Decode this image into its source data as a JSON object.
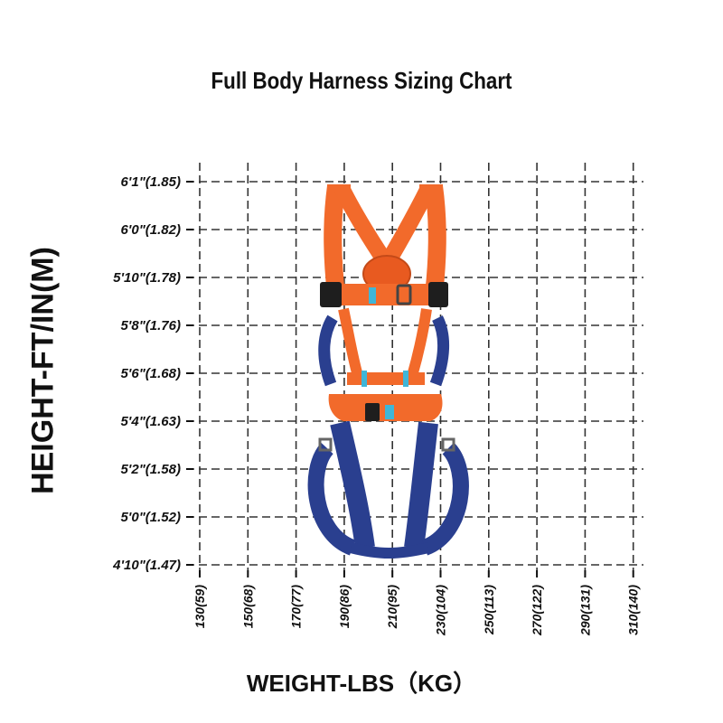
{
  "chart_data": {
    "type": "table",
    "title": "Full Body Harness Sizing Chart",
    "xlabel": "WEIGHT-LBS（KG）",
    "ylabel": "HEIGHT-FT/IN(M)",
    "x_ticks": [
      "130(59)",
      "150(68)",
      "170(77)",
      "190(86)",
      "210(95)",
      "230(104)",
      "250(113)",
      "270(122)",
      "290(131)",
      "310(140)"
    ],
    "y_ticks": [
      "6'1\"(1.85)",
      "6'0\"(1.82)",
      "5'10\"(1.78)",
      "5'8\"(1.76)",
      "5'6\"(1.68)",
      "5'4\"(1.63)",
      "5'2\"(1.58)",
      "5'0\"(1.52)",
      "4'10\"(1.47)"
    ],
    "grid": true,
    "grid_style": "dashed",
    "fit_region": {
      "weight_lbs": [
        180,
        230
      ],
      "height": [
        "4'10\"",
        "6'1\""
      ]
    },
    "colors": {
      "harness_primary": "#f26a2b",
      "harness_secondary": "#2a3f8f",
      "buckle": "#3fb6d8",
      "grid": "#333333"
    }
  }
}
